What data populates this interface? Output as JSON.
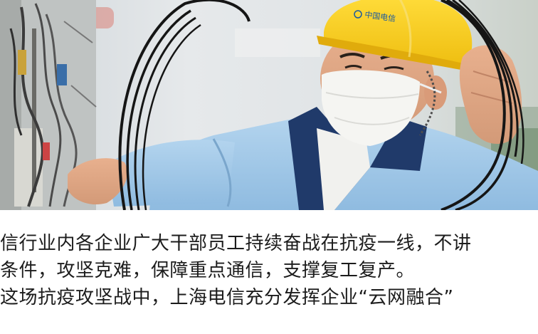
{
  "photo": {
    "subject": "worker-in-helmet-and-mask",
    "helmet_logo": "中国电信",
    "helmet_color": "#f6cc1e",
    "uniform_color": "#9ec6e6"
  },
  "article": {
    "lines": [
      "信行业内各企业广大干部员工持续奋战在抗疫一线，不讲",
      "条件，攻坚克难，保障重点通信，支撑复工复产。",
      "这场抗疫攻坚战中，上海电信充分发挥企业“云网融合”"
    ]
  }
}
